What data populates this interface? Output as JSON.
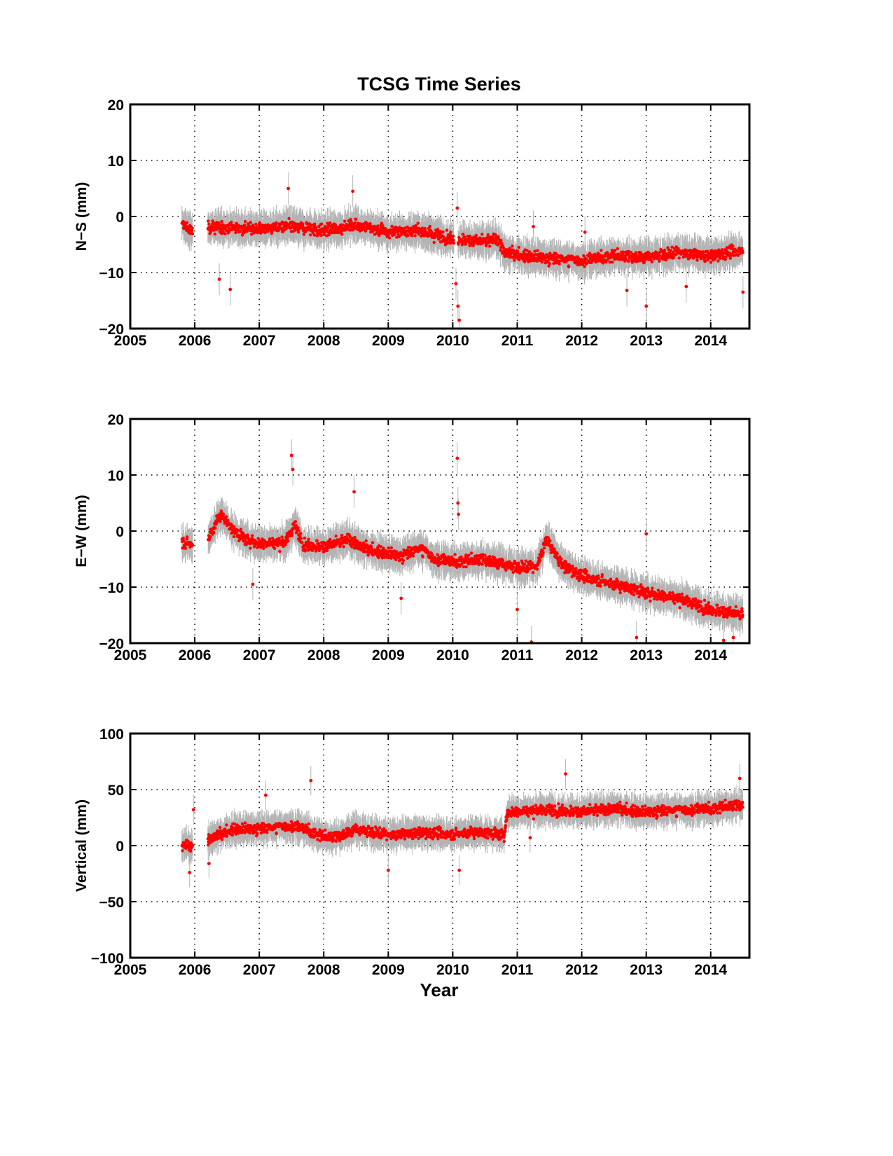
{
  "title": "TCSG Time Series",
  "colors": {
    "point": "#ff0000",
    "error_bar": "#b4b4b4",
    "axes": "#000000",
    "grid": "#000000"
  },
  "chart_data": [
    {
      "type": "scatter",
      "title": "TCSG Time Series",
      "xlabel": "",
      "ylabel": "N−S (mm)",
      "xlim": [
        2005,
        2014.6
      ],
      "ylim": [
        -20,
        20
      ],
      "xticks": [
        "2005",
        "2006",
        "2007",
        "2008",
        "2009",
        "2010",
        "2011",
        "2012",
        "2013",
        "2014"
      ],
      "yticks": [
        "−20",
        "−10",
        "0",
        "10",
        "20"
      ],
      "ytick_values": [
        -20,
        -10,
        0,
        10,
        20
      ],
      "grid": true,
      "error_bars": true,
      "trend": [
        [
          2005.8,
          -1.5
        ],
        [
          2006.0,
          -3.0
        ],
        [
          2006.2,
          -2.0
        ],
        [
          2006.6,
          -2.0
        ],
        [
          2007.0,
          -2.2
        ],
        [
          2007.5,
          -1.8
        ],
        [
          2008.0,
          -2.5
        ],
        [
          2008.5,
          -1.5
        ],
        [
          2009.0,
          -2.8
        ],
        [
          2009.5,
          -2.5
        ],
        [
          2010.0,
          -4.0
        ],
        [
          2010.5,
          -4.5
        ],
        [
          2010.7,
          -4.0
        ],
        [
          2010.8,
          -6.5
        ],
        [
          2011.5,
          -7.5
        ],
        [
          2012.0,
          -7.8
        ],
        [
          2012.5,
          -7.0
        ],
        [
          2013.0,
          -7.2
        ],
        [
          2013.5,
          -6.5
        ],
        [
          2014.0,
          -7.0
        ],
        [
          2014.5,
          -6.0
        ]
      ],
      "spread": 1.3,
      "gaps": [
        [
          2005.97,
          2006.2
        ],
        [
          2010.02,
          2010.08
        ]
      ],
      "x_start": 2005.8,
      "x_end": 2014.5,
      "outliers": [
        [
          2006.38,
          -11.2
        ],
        [
          2006.55,
          -13.0
        ],
        [
          2007.45,
          5.0
        ],
        [
          2008.45,
          4.5
        ],
        [
          2010.05,
          -12.0
        ],
        [
          2010.08,
          -16.0
        ],
        [
          2010.1,
          -18.5
        ],
        [
          2010.07,
          1.5
        ],
        [
          2011.25,
          -1.8
        ],
        [
          2012.05,
          -2.8
        ],
        [
          2012.7,
          -13.2
        ],
        [
          2013.0,
          -16.0
        ],
        [
          2013.62,
          -12.5
        ],
        [
          2014.5,
          -13.5
        ]
      ]
    },
    {
      "type": "scatter",
      "title": "",
      "xlabel": "",
      "ylabel": "E−W (mm)",
      "xlim": [
        2005,
        2014.6
      ],
      "ylim": [
        -20,
        20
      ],
      "xticks": [
        "2005",
        "2006",
        "2007",
        "2008",
        "2009",
        "2010",
        "2011",
        "2012",
        "2013",
        "2014"
      ],
      "yticks": [
        "−20",
        "−10",
        "0",
        "10",
        "20"
      ],
      "ytick_values": [
        -20,
        -10,
        0,
        10,
        20
      ],
      "grid": true,
      "error_bars": true,
      "trend": [
        [
          2005.8,
          -2.0
        ],
        [
          2006.0,
          -2.5
        ],
        [
          2006.2,
          -1.5
        ],
        [
          2006.4,
          3.0
        ],
        [
          2006.6,
          0.0
        ],
        [
          2006.8,
          -1.5
        ],
        [
          2007.0,
          -2.2
        ],
        [
          2007.4,
          -2.0
        ],
        [
          2007.55,
          1.0
        ],
        [
          2007.7,
          -2.5
        ],
        [
          2008.0,
          -2.8
        ],
        [
          2008.4,
          -1.5
        ],
        [
          2008.6,
          -3.0
        ],
        [
          2009.0,
          -4.0
        ],
        [
          2009.2,
          -4.5
        ],
        [
          2009.5,
          -3.0
        ],
        [
          2009.7,
          -4.8
        ],
        [
          2010.0,
          -5.5
        ],
        [
          2010.5,
          -5.0
        ],
        [
          2011.0,
          -6.5
        ],
        [
          2011.3,
          -6.5
        ],
        [
          2011.45,
          -1.5
        ],
        [
          2011.7,
          -6.0
        ],
        [
          2012.0,
          -8.0
        ],
        [
          2012.5,
          -9.5
        ],
        [
          2013.0,
          -11.0
        ],
        [
          2013.5,
          -12.0
        ],
        [
          2014.0,
          -14.0
        ],
        [
          2014.5,
          -15.0
        ]
      ],
      "spread": 1.3,
      "gaps": [
        [
          2005.97,
          2006.2
        ]
      ],
      "x_start": 2005.8,
      "x_end": 2014.5,
      "outliers": [
        [
          2007.5,
          13.5
        ],
        [
          2007.52,
          11.0
        ],
        [
          2008.47,
          7.0
        ],
        [
          2010.07,
          13.0
        ],
        [
          2010.08,
          5.0
        ],
        [
          2010.09,
          3.0
        ],
        [
          2006.9,
          -9.5
        ],
        [
          2009.2,
          -12.0
        ],
        [
          2011.0,
          -14.0
        ],
        [
          2011.22,
          -19.8
        ],
        [
          2013.0,
          -0.5
        ],
        [
          2012.85,
          -19.0
        ],
        [
          2014.2,
          -19.5
        ],
        [
          2014.35,
          -19.0
        ]
      ]
    },
    {
      "type": "scatter",
      "title": "",
      "xlabel": "Year",
      "ylabel": "Vertical (mm)",
      "xlim": [
        2005,
        2014.6
      ],
      "ylim": [
        -100,
        100
      ],
      "xticks": [
        "2005",
        "2006",
        "2007",
        "2008",
        "2009",
        "2010",
        "2011",
        "2012",
        "2013",
        "2014"
      ],
      "yticks": [
        "−100",
        "−50",
        "0",
        "50",
        "100"
      ],
      "ytick_values": [
        -100,
        -50,
        0,
        50,
        100
      ],
      "grid": true,
      "error_bars": true,
      "trend": [
        [
          2005.8,
          0.0
        ],
        [
          2006.0,
          0.0
        ],
        [
          2006.2,
          5.0
        ],
        [
          2006.6,
          15.0
        ],
        [
          2007.0,
          15.0
        ],
        [
          2007.5,
          18.0
        ],
        [
          2007.7,
          15.0
        ],
        [
          2008.0,
          8.0
        ],
        [
          2008.2,
          8.0
        ],
        [
          2008.5,
          15.0
        ],
        [
          2009.0,
          9.0
        ],
        [
          2009.5,
          12.0
        ],
        [
          2010.0,
          10.0
        ],
        [
          2010.3,
          12.0
        ],
        [
          2010.8,
          10.0
        ],
        [
          2010.85,
          30.0
        ],
        [
          2011.5,
          32.0
        ],
        [
          2012.0,
          30.0
        ],
        [
          2012.5,
          33.0
        ],
        [
          2013.0,
          30.0
        ],
        [
          2013.5,
          32.0
        ],
        [
          2014.0,
          33.0
        ],
        [
          2014.5,
          37.0
        ]
      ],
      "spread": 6.0,
      "gaps": [
        [
          2005.97,
          2006.2
        ]
      ],
      "x_start": 2005.8,
      "x_end": 2014.5,
      "outliers": [
        [
          2005.92,
          -24.0
        ],
        [
          2005.98,
          32.0
        ],
        [
          2006.22,
          -16.0
        ],
        [
          2007.1,
          45.0
        ],
        [
          2007.8,
          58.0
        ],
        [
          2009.0,
          -22.0
        ],
        [
          2010.1,
          -22.0
        ],
        [
          2011.75,
          64.0
        ],
        [
          2014.45,
          60.0
        ],
        [
          2011.2,
          7.0
        ]
      ]
    }
  ]
}
